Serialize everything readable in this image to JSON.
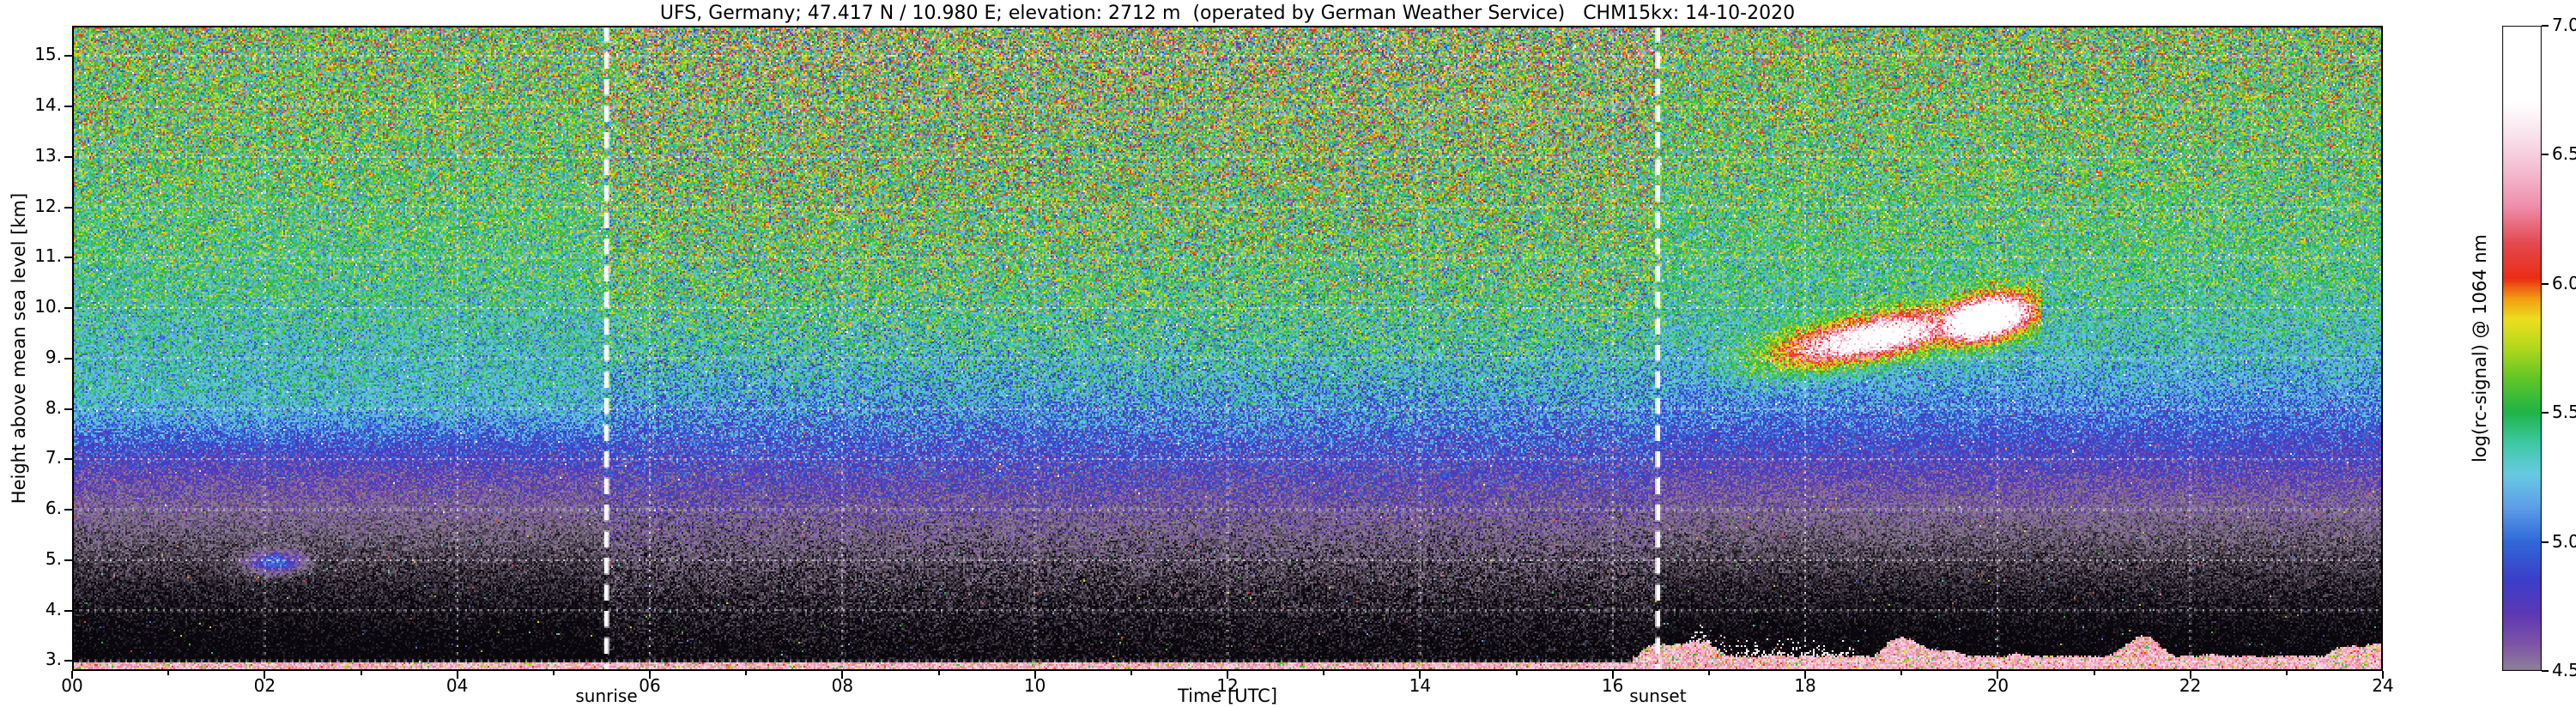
{
  "chart_data": {
    "type": "heatmap",
    "title": "UFS, Germany; 47.417 N / 10.980 E; elevation: 2712 m  (operated by German Weather Service)   CHM15kx: 14-10-2020",
    "instrument": "CHM15kx",
    "date": "14-10-2020",
    "xlabel": "Time [UTC]",
    "ylabel": "Height above mean sea level [km]",
    "xlim": [
      0,
      24
    ],
    "ylim": [
      2.8,
      15.6
    ],
    "grid": true,
    "x_ticks": [
      0,
      2,
      4,
      6,
      8,
      10,
      12,
      14,
      16,
      18,
      20,
      22,
      24
    ],
    "x_tick_labels": [
      "00",
      "02",
      "04",
      "06",
      "08",
      "10",
      "12",
      "14",
      "16",
      "18",
      "20",
      "22",
      "24"
    ],
    "x_minor_ticks": [
      1,
      3,
      5,
      7,
      9,
      11,
      13,
      15,
      17,
      19,
      21,
      23
    ],
    "y_ticks": [
      3,
      4,
      5,
      6,
      7,
      8,
      9,
      10,
      11,
      12,
      13,
      14,
      15
    ],
    "y_tick_labels": [
      "3.",
      "4.",
      "5.",
      "6.",
      "7.",
      "8.",
      "9.",
      "10.",
      "11.",
      "12.",
      "13.",
      "14.",
      "15."
    ],
    "annotations": [
      {
        "label": "sunrise",
        "x": 5.55,
        "style": "thick-white-dashed-vertical"
      },
      {
        "label": "sunset",
        "x": 16.47,
        "style": "thick-white-dashed-vertical"
      }
    ],
    "colorbar": {
      "label": "log(rc-signal) @ 1064 nm",
      "min": 4.5,
      "max": 7.0,
      "ticks": [
        {
          "v": 7.0,
          "label": "7.0"
        },
        {
          "v": 6.5,
          "label": "6.5"
        },
        {
          "v": 6.0,
          "label": "6.0"
        },
        {
          "v": 5.5,
          "label": "5.5"
        },
        {
          "v": 5.0,
          "label": "5.0"
        },
        {
          "v": 4.5,
          "label": "4.5"
        }
      ]
    },
    "field_description": "Range-corrected lidar backscatter speckle field: near-black with violet speckle below ~5 km, violet-blue 5-7 km, green-teal 7-10 km, olive-brown noisy speckle above 10 km (noisier/brighter between sunrise and sunset), a bright cloud band (white core, red/yellow fringe) at 9-10 km between 17:00 and 20:30 UTC, a faint blue spot near 02:00 at 4.9 km, and a magenta surface aerosol layer near 3 km that thickens and becomes bumpy after ~16:20 UTC with whitish speckle tops near 17-18 UTC.",
    "render": {
      "colormap": [
        [
          4.5,
          "#907f98"
        ],
        [
          4.6,
          "#7d54a6"
        ],
        [
          4.72,
          "#5c38b4"
        ],
        [
          4.85,
          "#3b3eca"
        ],
        [
          5.0,
          "#3169d8"
        ],
        [
          5.13,
          "#5d9de9"
        ],
        [
          5.26,
          "#67cae2"
        ],
        [
          5.38,
          "#3fc9a3"
        ],
        [
          5.5,
          "#20b447"
        ],
        [
          5.63,
          "#5fc627"
        ],
        [
          5.75,
          "#b2d81b"
        ],
        [
          5.86,
          "#ecdf1d"
        ],
        [
          5.94,
          "#f29d13"
        ],
        [
          6.02,
          "#ea2d15"
        ],
        [
          6.16,
          "#e34a52"
        ],
        [
          6.3,
          "#ee8fad"
        ],
        [
          6.44,
          "#f4bdd1"
        ],
        [
          6.58,
          "#f9e4ed"
        ],
        [
          6.7,
          "#ffffff"
        ],
        [
          7.0,
          "#ffffff"
        ]
      ],
      "under_range_span": 0.45,
      "mean_profile": [
        [
          2.8,
          3.95
        ],
        [
          3.6,
          4.03
        ],
        [
          4.4,
          4.14
        ],
        [
          5.2,
          4.3
        ],
        [
          6.0,
          4.5
        ],
        [
          6.8,
          4.72
        ],
        [
          7.6,
          4.95
        ],
        [
          8.4,
          5.14
        ],
        [
          9.2,
          5.28
        ],
        [
          10.0,
          5.38
        ],
        [
          11.0,
          5.45
        ],
        [
          12.5,
          5.5
        ],
        [
          14.0,
          5.55
        ],
        [
          15.6,
          5.58
        ]
      ],
      "noise_profile": [
        [
          2.8,
          0.2
        ],
        [
          4.0,
          0.24
        ],
        [
          5.5,
          0.29
        ],
        [
          7.0,
          0.35
        ],
        [
          8.5,
          0.42
        ],
        [
          10.0,
          0.5
        ],
        [
          11.5,
          0.58
        ],
        [
          13.0,
          0.67
        ],
        [
          14.5,
          0.76
        ],
        [
          15.6,
          0.84
        ]
      ],
      "daytime": {
        "amp_factor": 1.28,
        "offset": 0.05
      },
      "features": [
        {
          "name": "cirrus-cloud",
          "t_range": [
            17.0,
            20.45
          ],
          "h_start": 8.85,
          "slope": 0.3235,
          "sigma_h": 0.3,
          "peak": 2.4,
          "env": [
            {
              "c": 18.7,
              "s": 0.7,
              "a": 0.85
            },
            {
              "c": 19.85,
              "s": 0.35,
              "a": 1.15
            }
          ]
        },
        {
          "name": "blue-spot",
          "t": 2.1,
          "h": 4.95,
          "sigma_t": 0.2,
          "sigma_h": 0.15,
          "peak": 0.95
        },
        {
          "name": "night-haze-band",
          "t_max": 5.6,
          "h": 8.1,
          "sigma_h": 0.55,
          "peak": 0.16
        }
      ],
      "surface_layer": {
        "flat_top": 2.97,
        "bumpy_after": 16.2,
        "value_min": 6.25,
        "speckle_t_range": [
          16.8,
          18.5
        ]
      }
    }
  }
}
